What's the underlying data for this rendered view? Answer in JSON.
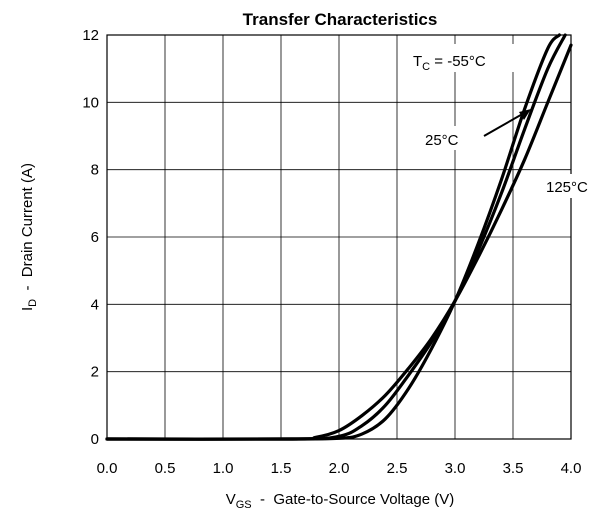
{
  "chart_data": {
    "type": "line",
    "title": "Transfer Characteristics",
    "xlabel": {
      "main": "V",
      "sub": "GS",
      "rest": "  -  Gate-to-Source Voltage (V)"
    },
    "ylabel": {
      "main": "I",
      "sub": "D",
      "rest": "  -  Drain Current (A)"
    },
    "xlim": [
      0.0,
      4.0
    ],
    "ylim": [
      0,
      12
    ],
    "xticks": [
      0.0,
      0.5,
      1.0,
      1.5,
      2.0,
      2.5,
      3.0,
      3.5,
      4.0
    ],
    "xtick_labels": [
      "0.0",
      "0.5",
      "1.0",
      "1.5",
      "2.0",
      "2.5",
      "3.0",
      "3.5",
      "4.0"
    ],
    "yticks": [
      0,
      2,
      4,
      6,
      8,
      10,
      12
    ],
    "ytick_labels": [
      "0",
      "2",
      "4",
      "6",
      "8",
      "10",
      "12"
    ],
    "grid": true,
    "series": [
      {
        "name": "-55°C",
        "x": [
          0.0,
          1.5,
          2.0,
          2.2,
          2.4,
          2.6,
          2.8,
          3.0,
          3.2,
          3.4,
          3.6,
          3.8,
          3.9
        ],
        "y": [
          0.0,
          0.0,
          0.02,
          0.15,
          0.6,
          1.5,
          2.7,
          4.1,
          5.8,
          7.7,
          9.8,
          11.6,
          12.0
        ]
      },
      {
        "name": "25°C",
        "x": [
          0.0,
          1.6,
          2.0,
          2.2,
          2.4,
          2.6,
          2.8,
          3.0,
          3.2,
          3.4,
          3.6,
          3.8,
          3.95
        ],
        "y": [
          0.0,
          0.0,
          0.08,
          0.4,
          1.0,
          1.9,
          2.9,
          4.1,
          5.6,
          7.3,
          9.2,
          11.0,
          12.0
        ]
      },
      {
        "name": "125°C",
        "x": [
          0.0,
          1.6,
          1.8,
          2.0,
          2.2,
          2.4,
          2.6,
          2.8,
          3.0,
          3.2,
          3.4,
          3.6,
          3.8,
          4.0
        ],
        "y": [
          0.0,
          0.0,
          0.05,
          0.25,
          0.7,
          1.3,
          2.1,
          3.0,
          4.1,
          5.4,
          6.8,
          8.3,
          10.0,
          11.7
        ]
      }
    ],
    "annotations": [
      {
        "id": "tc",
        "prefix": "T",
        "sub": "C",
        "suffix": " = -55°C"
      },
      {
        "id": "t25",
        "text": "25°C"
      },
      {
        "id": "t125",
        "text": "125°C"
      }
    ],
    "colors": {
      "line": "#000000",
      "grid": "#000000",
      "background": "#ffffff"
    }
  }
}
